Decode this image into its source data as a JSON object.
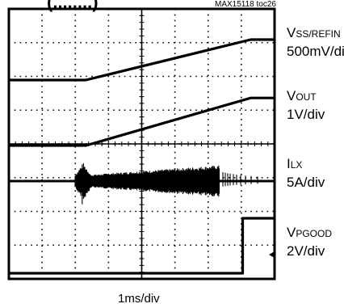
{
  "figure_id": "MAX15118 toc26",
  "title_partial": "(........)",
  "chart_data": {
    "type": "line",
    "time_unit": "ms",
    "xlim": [
      0,
      5
    ],
    "traces": [
      {
        "label_main": "V",
        "label_sub": "SS/REFIN",
        "scale": "500mV/div",
        "points": [
          [
            0,
            0
          ],
          [
            1.45,
            0
          ],
          [
            4.55,
            0.98
          ],
          [
            5,
            0.98
          ]
        ]
      },
      {
        "label_main": "V",
        "label_sub": "OUT",
        "scale": "1V/div",
        "points": [
          [
            0,
            0
          ],
          [
            1.45,
            0
          ],
          [
            4.55,
            0.98
          ],
          [
            5,
            0.98
          ]
        ]
      },
      {
        "label_main": "I",
        "label_sub": "LX",
        "scale": "5A/div",
        "description": "switching ripple envelope"
      },
      {
        "label_main": "V",
        "label_sub": "PGOOD",
        "scale": "2V/div",
        "points": [
          [
            0,
            0
          ],
          [
            4.4,
            0
          ],
          [
            4.4,
            1
          ],
          [
            5,
            1
          ]
        ]
      }
    ],
    "xlabel": "1ms/div"
  }
}
